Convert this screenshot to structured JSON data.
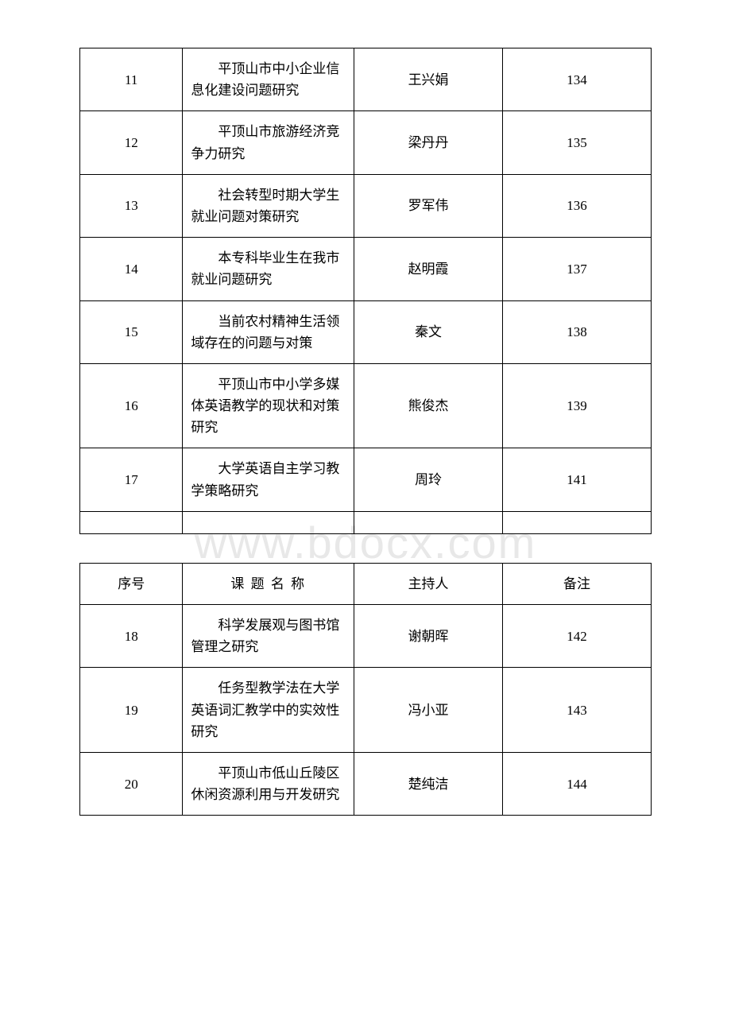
{
  "watermark": "www.bdocx.com",
  "table1": {
    "rows": [
      {
        "seq": "11",
        "title": "平顶山市中小企业信息化建设问题研究",
        "person": "王兴娟",
        "note": "134"
      },
      {
        "seq": "12",
        "title": "平顶山市旅游经济竞争力研究",
        "person": "梁丹丹",
        "note": "135"
      },
      {
        "seq": "13",
        "title": "社会转型时期大学生就业问题对策研究",
        "person": "罗军伟",
        "note": "136"
      },
      {
        "seq": "14",
        "title": "本专科毕业生在我市就业问题研究",
        "person": "赵明霞",
        "note": "137"
      },
      {
        "seq": "15",
        "title": "当前农村精神生活领域存在的问题与对策",
        "person": "秦文",
        "note": "138"
      },
      {
        "seq": "16",
        "title": "平顶山市中小学多媒体英语教学的现状和对策研究",
        "person": "熊俊杰",
        "note": "139"
      },
      {
        "seq": "17",
        "title": "大学英语自主学习教学策略研究",
        "person": "周玲",
        "note": "141"
      }
    ]
  },
  "table2": {
    "headers": {
      "seq": "序号",
      "title": "课 题 名 称",
      "person": "主持人",
      "note": "备注"
    },
    "rows": [
      {
        "seq": "18",
        "title": "科学发展观与图书馆管理之研究",
        "person": "谢朝晖",
        "note": "142"
      },
      {
        "seq": "19",
        "title": "任务型教学法在大学英语词汇教学中的实效性研究",
        "person": "冯小亚",
        "note": "143"
      },
      {
        "seq": "20",
        "title": "平顶山市低山丘陵区休闲资源利用与开发研究",
        "person": "楚纯洁",
        "note": "144"
      }
    ]
  }
}
